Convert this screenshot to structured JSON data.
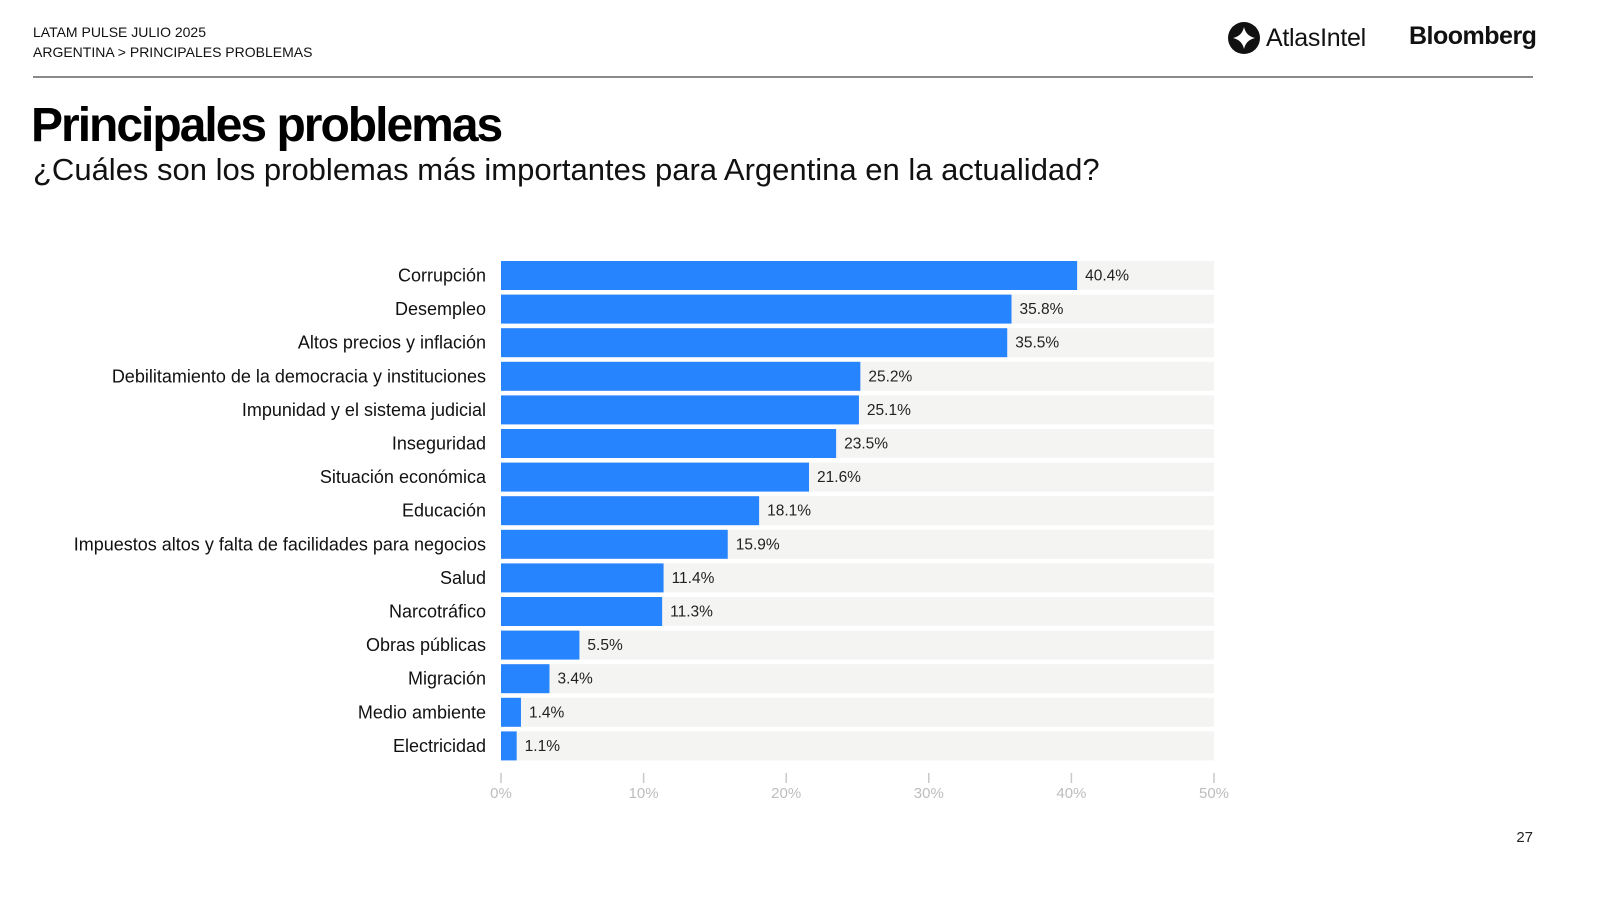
{
  "header": {
    "report_name": "LATAM PULSE JULIO 2025",
    "breadcrumb": "ARGENTINA > PRINCIPALES PROBLEMAS",
    "logos": {
      "atlas": "AtlasIntel",
      "bloomberg": "Bloomberg"
    }
  },
  "page": {
    "number": "27"
  },
  "colors": {
    "bar": "#2684FF",
    "track": "#F4F4F3",
    "axis": "#C8C8C8"
  },
  "chart_data": {
    "type": "bar",
    "orientation": "horizontal",
    "title": "Principales problemas",
    "subtitle": "¿Cuáles son los problemas más importantes para Argentina en la actualidad?",
    "xlabel": "",
    "ylabel": "",
    "xlim": [
      0,
      50
    ],
    "x_ticks": [
      0,
      10,
      20,
      30,
      40,
      50
    ],
    "x_tick_labels": [
      "0%",
      "10%",
      "20%",
      "30%",
      "40%",
      "50%"
    ],
    "categories": [
      "Corrupción",
      "Desempleo",
      "Altos precios y inflación",
      "Debilitamiento de la democracia y instituciones",
      "Impunidad y el sistema judicial",
      "Inseguridad",
      "Situación económica",
      "Educación",
      "Impuestos altos y falta de facilidades para negocios",
      "Salud",
      "Narcotráfico",
      "Obras públicas",
      "Migración",
      "Medio ambiente",
      "Electricidad"
    ],
    "values": [
      40.4,
      35.8,
      35.5,
      25.2,
      25.1,
      23.5,
      21.6,
      18.1,
      15.9,
      11.4,
      11.3,
      5.5,
      3.4,
      1.4,
      1.1
    ],
    "value_labels": [
      "40.4%",
      "35.8%",
      "35.5%",
      "25.2%",
      "25.1%",
      "23.5%",
      "21.6%",
      "18.1%",
      "15.9%",
      "11.4%",
      "11.3%",
      "5.5%",
      "3.4%",
      "1.4%",
      "1.1%"
    ],
    "grid": false,
    "legend": "none"
  }
}
